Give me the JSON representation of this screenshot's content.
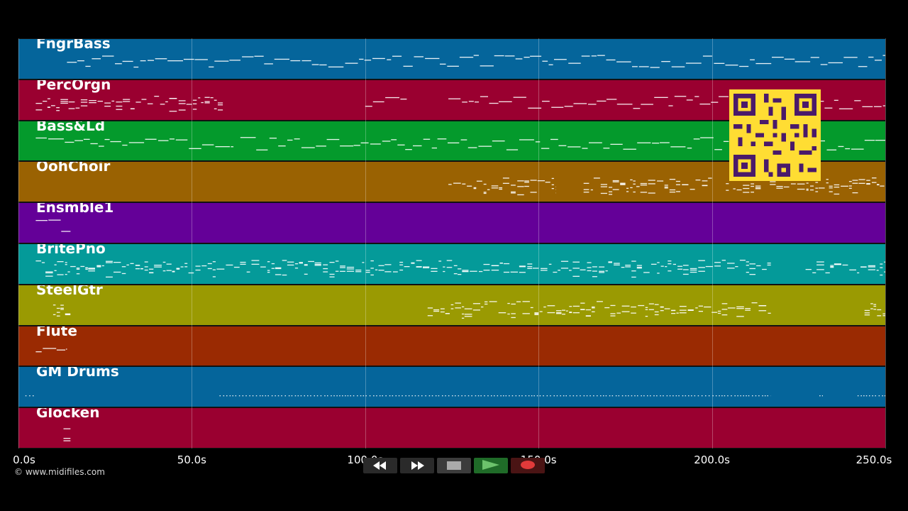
{
  "timeline": {
    "ticks": [
      "0.0s",
      "50.0s",
      "100.0s",
      "150.0s",
      "200.0s",
      "250.0s"
    ],
    "tick_seconds": [
      0,
      50,
      100,
      150,
      200,
      250
    ],
    "max_seconds": 250
  },
  "tracks": [
    {
      "name": "FngrBass",
      "color": "#05659b",
      "notes": [
        [
          14,
          250,
          "line"
        ]
      ]
    },
    {
      "name": "PercOrgn",
      "color": "#9a0030",
      "notes": [
        [
          5,
          59,
          "dense"
        ],
        [
          100,
          112,
          "line"
        ],
        [
          124,
          250,
          "line"
        ]
      ]
    },
    {
      "name": "Bass&Ld",
      "color": "#049a2c",
      "notes": [
        [
          5,
          62,
          "line"
        ],
        [
          64,
          250,
          "line"
        ]
      ]
    },
    {
      "name": "OohChoir",
      "color": "#9a6202",
      "notes": [
        [
          124,
          155,
          "dense"
        ],
        [
          163,
          200,
          "dense"
        ],
        [
          204,
          250,
          "dense"
        ]
      ]
    },
    {
      "name": "Ensmble1",
      "color": "#640098",
      "notes": [
        [
          5,
          15,
          "line"
        ]
      ]
    },
    {
      "name": "BritePno",
      "color": "#049a99",
      "notes": [
        [
          5,
          217,
          "dense"
        ],
        [
          227,
          250,
          "dense"
        ]
      ]
    },
    {
      "name": "SteelGtr",
      "color": "#9a9a02",
      "notes": [
        [
          10,
          15,
          "dense"
        ],
        [
          118,
          217,
          "dense"
        ],
        [
          244,
          250,
          "dense"
        ]
      ]
    },
    {
      "name": "Flute",
      "color": "#9a2a02",
      "notes": [
        [
          5,
          14,
          "line"
        ]
      ]
    },
    {
      "name": "GM Drums",
      "color": "#05659b",
      "notes": [
        [
          2,
          5,
          "dots"
        ],
        [
          58,
          217,
          "dots"
        ],
        [
          231,
          232,
          "dots"
        ],
        [
          242,
          250,
          "dots"
        ]
      ]
    },
    {
      "name": "Glocken",
      "color": "#9a0030",
      "notes": [
        [
          13,
          15,
          "dense"
        ]
      ]
    }
  ],
  "copyright": "© www.midifiles.com",
  "transport": [
    {
      "name": "rewind-button",
      "icon": "rewind-icon",
      "bg": "#2a2a2a"
    },
    {
      "name": "fast-forward-button",
      "icon": "fast-forward-icon",
      "bg": "#2a2a2a"
    },
    {
      "name": "stop-button",
      "icon": "stop-icon",
      "bg": "#3c3c3c"
    },
    {
      "name": "play-button",
      "icon": "play-icon",
      "bg": "#1f6b28"
    },
    {
      "name": "record-button",
      "icon": "record-icon",
      "bg": "#4a1414"
    }
  ]
}
